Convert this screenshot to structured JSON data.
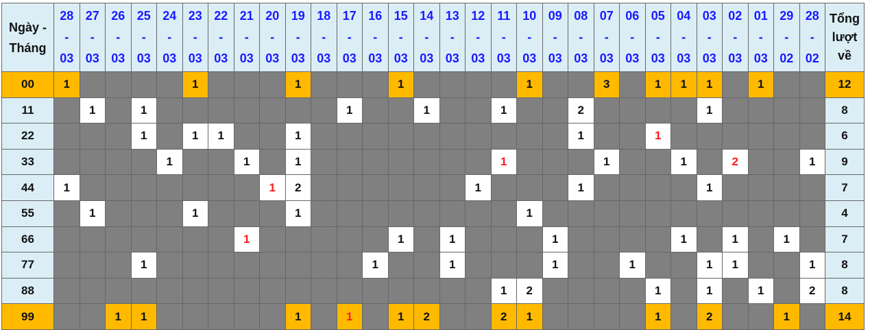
{
  "header": {
    "label": "Ngày - Tháng",
    "total_label": "Tổng lượt về",
    "dates": [
      "28-03",
      "27-03",
      "26-03",
      "25-03",
      "24-03",
      "23-03",
      "22-03",
      "21-03",
      "20-03",
      "19-03",
      "18-03",
      "17-03",
      "16-03",
      "15-03",
      "14-03",
      "13-03",
      "12-03",
      "11-03",
      "10-03",
      "09-03",
      "08-03",
      "07-03",
      "06-03",
      "05-03",
      "04-03",
      "03-03",
      "02-03",
      "01-03",
      "29-02",
      "28-02"
    ]
  },
  "colors": {
    "header_bg": "#dbeef6",
    "highlight": "#ffba00",
    "empty": "#808080",
    "hit": "#ffffff",
    "date_text": "#1a1aff",
    "red_text": "#ff1a1a"
  },
  "rows": [
    {
      "label": "00",
      "highlight": true,
      "total": "12",
      "red": [],
      "cells": [
        "1",
        "",
        "",
        "",
        "",
        "1",
        "",
        "",
        "",
        "1",
        "",
        "",
        "",
        "1",
        "",
        "",
        "",
        "",
        "1",
        "",
        "",
        "3",
        "",
        "1",
        "1",
        "1",
        "",
        "1",
        "",
        ""
      ]
    },
    {
      "label": "11",
      "highlight": false,
      "total": "8",
      "red": [],
      "cells": [
        "",
        "1",
        "",
        "1",
        "",
        "",
        "",
        "",
        "",
        "",
        "",
        "1",
        "",
        "",
        "1",
        "",
        "",
        "1",
        "",
        "",
        "2",
        "",
        "",
        "",
        "",
        "1",
        "",
        "",
        "",
        ""
      ]
    },
    {
      "label": "22",
      "highlight": false,
      "total": "6",
      "red": [
        23
      ],
      "cells": [
        "",
        "",
        "",
        "1",
        "",
        "1",
        "1",
        "",
        "",
        "1",
        "",
        "",
        "",
        "",
        "",
        "",
        "",
        "",
        "",
        "",
        "1",
        "",
        "",
        "1",
        "",
        "",
        "",
        "",
        "",
        ""
      ]
    },
    {
      "label": "33",
      "highlight": false,
      "total": "9",
      "red": [
        17,
        26
      ],
      "cells": [
        "",
        "",
        "",
        "",
        "1",
        "",
        "",
        "1",
        "",
        "1",
        "",
        "",
        "",
        "",
        "",
        "",
        "",
        "1",
        "",
        "",
        "",
        "1",
        "",
        "",
        "1",
        "",
        "2",
        "",
        "",
        "1"
      ]
    },
    {
      "label": "44",
      "highlight": false,
      "total": "7",
      "red": [
        8
      ],
      "cells": [
        "1",
        "",
        "",
        "",
        "",
        "",
        "",
        "",
        "1",
        "2",
        "",
        "",
        "",
        "",
        "",
        "",
        "1",
        "",
        "",
        "",
        "1",
        "",
        "",
        "",
        "",
        "1",
        "",
        "",
        "",
        ""
      ]
    },
    {
      "label": "55",
      "highlight": false,
      "total": "4",
      "red": [],
      "cells": [
        "",
        "1",
        "",
        "",
        "",
        "1",
        "",
        "",
        "",
        "1",
        "",
        "",
        "",
        "",
        "",
        "",
        "",
        "",
        "1",
        "",
        "",
        "",
        "",
        "",
        "",
        "",
        "",
        "",
        "",
        ""
      ]
    },
    {
      "label": "66",
      "highlight": false,
      "total": "7",
      "red": [
        7
      ],
      "cells": [
        "",
        "",
        "",
        "",
        "",
        "",
        "",
        "1",
        "",
        "",
        "",
        "",
        "",
        "1",
        "",
        "1",
        "",
        "",
        "",
        "1",
        "",
        "",
        "",
        "",
        "1",
        "",
        "1",
        "",
        "1",
        ""
      ]
    },
    {
      "label": "77",
      "highlight": false,
      "total": "8",
      "red": [],
      "cells": [
        "",
        "",
        "",
        "1",
        "",
        "",
        "",
        "",
        "",
        "",
        "",
        "",
        "1",
        "",
        "",
        "1",
        "",
        "",
        "",
        "1",
        "",
        "",
        "1",
        "",
        "",
        "1",
        "1",
        "",
        "",
        "1"
      ]
    },
    {
      "label": "88",
      "highlight": false,
      "total": "8",
      "red": [],
      "cells": [
        "",
        "",
        "",
        "",
        "",
        "",
        "",
        "",
        "",
        "",
        "",
        "",
        "",
        "",
        "",
        "",
        "",
        "1",
        "2",
        "",
        "",
        "",
        "",
        "1",
        "",
        "1",
        "",
        "1",
        "",
        "2"
      ]
    },
    {
      "label": "99",
      "highlight": true,
      "total": "14",
      "red": [
        11
      ],
      "cells": [
        "",
        "",
        "1",
        "1",
        "",
        "",
        "",
        "",
        "",
        "1",
        "",
        "1",
        "",
        "1",
        "2",
        "",
        "",
        "2",
        "1",
        "",
        "",
        "",
        "",
        "1",
        "",
        "2",
        "",
        "",
        "1",
        ""
      ]
    }
  ]
}
